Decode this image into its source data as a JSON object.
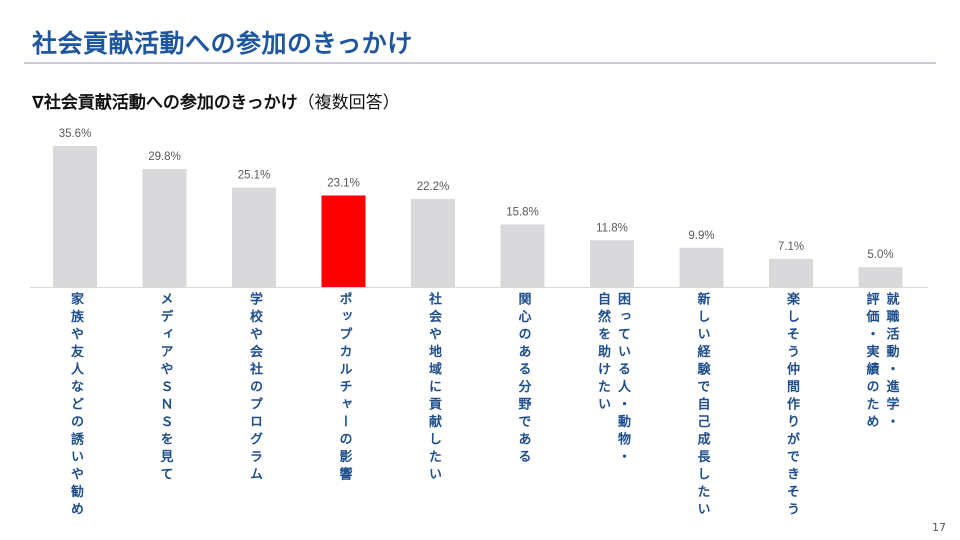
{
  "header": {
    "title": "社会貢献活動への参加のきっかけ"
  },
  "subtitle": {
    "main": "∇社会貢献活動への参加のきっかけ",
    "note": "（複数回答）"
  },
  "page_number": "17",
  "chart_data": {
    "type": "bar",
    "title": "∇社会貢献活動への参加のきっかけ（複数回答）",
    "categories": [
      [
        "家族や友人などの誘いや勧め"
      ],
      [
        "メディアやＳＮＳを見て"
      ],
      [
        "学校や会社のプログラム"
      ],
      [
        "ポップカルチャーの影響"
      ],
      [
        "社会や地域に貢献したい"
      ],
      [
        "関心のある分野である"
      ],
      [
        "困っている人・動物・",
        "自然を助けたい"
      ],
      [
        "新しい経験で自己成長したい"
      ],
      [
        "楽しそう仲間作りができそう"
      ],
      [
        "就職活動・進学・",
        "評価・実績のため"
      ]
    ],
    "values": [
      35.6,
      29.8,
      25.1,
      23.1,
      22.2,
      15.8,
      11.8,
      9.9,
      7.1,
      5.0
    ],
    "data_labels": [
      "35.6%",
      "29.8%",
      "25.1%",
      "23.1%",
      "22.2%",
      "15.8%",
      "11.8%",
      "9.9%",
      "7.1%",
      "5.0%"
    ],
    "highlight_index": 3,
    "colors": {
      "bar": "#d9d8da",
      "highlight": "#ff0000",
      "label": "#1f4e8c",
      "value_label": "#595959"
    },
    "ylim": [
      0,
      35.6
    ],
    "grid": false
  }
}
